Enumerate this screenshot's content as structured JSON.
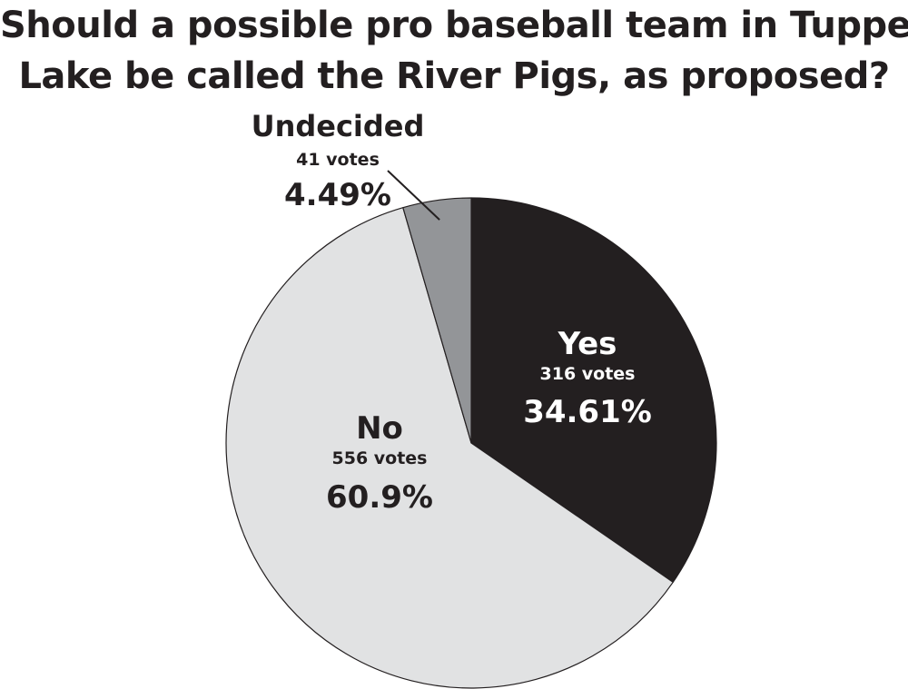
{
  "chart_data": {
    "type": "pie",
    "title_lines": [
      "Should a possible pro baseball team in Tupper",
      "Lake be called the River Pigs, as proposed?"
    ],
    "slices": [
      {
        "label": "Yes",
        "votes": 316,
        "votes_text": "316 votes",
        "percent": 34.61,
        "percent_text": "34.61%",
        "color": "#231f20",
        "text_color": "#ffffff"
      },
      {
        "label": "No",
        "votes": 556,
        "votes_text": "556 votes",
        "percent": 60.9,
        "percent_text": "60.9%",
        "color": "#e1e2e3",
        "text_color": "#231f20"
      },
      {
        "label": "Undecided",
        "votes": 41,
        "votes_text": "41 votes",
        "percent": 4.49,
        "percent_text": "4.49%",
        "color": "#939598",
        "text_color": "#231f20"
      }
    ],
    "start_angle": "12 o'clock",
    "direction": "clockwise",
    "legend": "none"
  }
}
